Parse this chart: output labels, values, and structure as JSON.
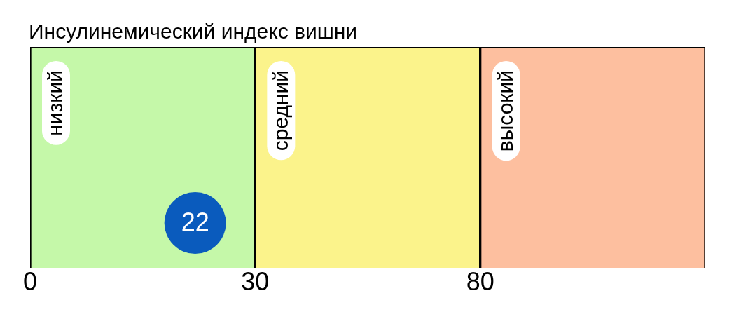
{
  "chart_data": {
    "type": "other",
    "title": "Инсулинемический индекс вишни",
    "categories": [
      "низкий",
      "средний",
      "высокий"
    ],
    "colors": [
      "#c5f8a9",
      "#fbf38b",
      "#fdbf9f"
    ],
    "values": [
      0,
      30,
      80
    ],
    "data_labels": true,
    "annotations": [
      "22"
    ],
    "color": "#0a5bbd"
  }
}
